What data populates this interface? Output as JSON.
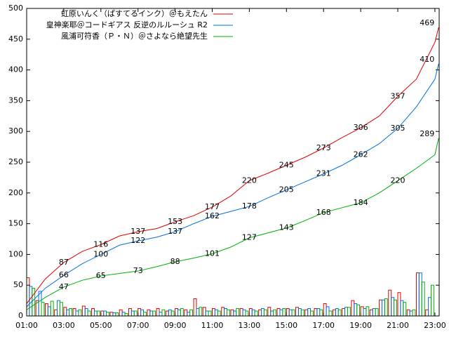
{
  "chart_data": {
    "type": "line-bar",
    "xlim": [
      1,
      23.23
    ],
    "ylim": [
      0,
      500
    ],
    "xticks": [
      {
        "value": 1,
        "label": "01:00"
      },
      {
        "value": 3,
        "label": "03:00"
      },
      {
        "value": 5,
        "label": "05:00"
      },
      {
        "value": 7,
        "label": "07:00"
      },
      {
        "value": 9,
        "label": "09:00"
      },
      {
        "value": 11,
        "label": "11:00"
      },
      {
        "value": 13,
        "label": "13:00"
      },
      {
        "value": 15,
        "label": "15:00"
      },
      {
        "value": 17,
        "label": "17:00"
      },
      {
        "value": 19,
        "label": "19:00"
      },
      {
        "value": 21,
        "label": "21:00"
      },
      {
        "value": 23,
        "label": "23:00"
      }
    ],
    "yticks": [
      0,
      50,
      100,
      150,
      200,
      250,
      300,
      350,
      400,
      450,
      500
    ],
    "x": [
      1,
      2,
      3,
      4,
      5,
      6,
      7,
      8,
      9,
      10,
      11,
      12,
      13,
      14,
      15,
      16,
      17,
      18,
      19,
      20,
      21,
      22,
      23,
      23.2
    ],
    "bar_x": [
      1,
      1.5,
      2,
      2.5,
      3,
      3.5,
      4,
      4.5,
      5,
      5.5,
      6,
      6.5,
      7,
      7.5,
      8,
      8.5,
      9,
      9.5,
      10,
      10.5,
      11,
      11.5,
      12,
      12.5,
      13,
      13.5,
      14,
      14.5,
      15,
      15.5,
      16,
      16.5,
      17,
      17.5,
      18,
      18.5,
      19,
      19.5,
      20,
      20.5,
      21,
      21.5,
      22,
      22.5
    ],
    "series": [
      {
        "name": "虹原いんく（ぱすてるインク）＠もえたん",
        "color": "#e00000",
        "values": [
          20,
          60,
          87,
          105,
          116,
          130,
          137,
          142,
          153,
          163,
          177,
          195,
          220,
          232,
          245,
          258,
          273,
          290,
          306,
          325,
          357,
          385,
          445,
          469
        ],
        "labels": [
          {
            "x": 3,
            "value": 87
          },
          {
            "x": 5,
            "value": 116
          },
          {
            "x": 7,
            "value": 137
          },
          {
            "x": 9,
            "value": 153
          },
          {
            "x": 11,
            "value": 177
          },
          {
            "x": 13,
            "value": 220
          },
          {
            "x": 15,
            "value": 245
          },
          {
            "x": 17,
            "value": 273
          },
          {
            "x": 19,
            "value": 306
          },
          {
            "x": 21,
            "value": 357
          },
          {
            "x": 23.2,
            "value": 469
          }
        ],
        "bars": [
          62,
          25,
          20,
          10,
          14,
          12,
          16,
          12,
          8,
          6,
          10,
          12,
          12,
          10,
          12,
          8,
          12,
          10,
          28,
          14,
          12,
          14,
          10,
          12,
          12,
          10,
          14,
          12,
          12,
          14,
          10,
          12,
          20,
          10,
          12,
          25,
          15,
          10,
          26,
          42,
          38,
          10,
          70,
          10
        ]
      },
      {
        "name": "皇神楽耶＠コードギアス 反逆のルルーシュ R2",
        "color": "#0070e0",
        "values": [
          15,
          45,
          66,
          85,
          100,
          115,
          122,
          128,
          137,
          150,
          162,
          170,
          178,
          192,
          205,
          218,
          231,
          245,
          262,
          280,
          305,
          340,
          385,
          410
        ],
        "labels": [
          {
            "x": 3,
            "value": 66
          },
          {
            "x": 5,
            "value": 100
          },
          {
            "x": 7,
            "value": 122
          },
          {
            "x": 9,
            "value": 137
          },
          {
            "x": 11,
            "value": 162
          },
          {
            "x": 13,
            "value": 178
          },
          {
            "x": 15,
            "value": 205
          },
          {
            "x": 17,
            "value": 231
          },
          {
            "x": 19,
            "value": 262
          },
          {
            "x": 21,
            "value": 305
          },
          {
            "x": 23.2,
            "value": 410
          }
        ],
        "bars": [
          48,
          40,
          15,
          25,
          10,
          8,
          12,
          8,
          8,
          5,
          6,
          8,
          10,
          8,
          6,
          10,
          10,
          6,
          12,
          8,
          10,
          12,
          8,
          10,
          10,
          12,
          8,
          10,
          10,
          12,
          12,
          12,
          15,
          12,
          14,
          20,
          12,
          12,
          26,
          30,
          25,
          8,
          70,
          30
        ]
      },
      {
        "name": "風浦可符香（Ｐ・Ｎ）＠さよなら絶望先生",
        "color": "#00b000",
        "values": [
          10,
          30,
          47,
          58,
          65,
          69,
          73,
          80,
          88,
          94,
          101,
          112,
          127,
          135,
          143,
          155,
          168,
          176,
          184,
          200,
          220,
          240,
          262,
          289
        ],
        "labels": [
          {
            "x": 3,
            "value": 47
          },
          {
            "x": 5,
            "value": 65
          },
          {
            "x": 7,
            "value": 73
          },
          {
            "x": 9,
            "value": 88
          },
          {
            "x": 11,
            "value": 101
          },
          {
            "x": 13,
            "value": 127
          },
          {
            "x": 15,
            "value": 143
          },
          {
            "x": 17,
            "value": 168
          },
          {
            "x": 19,
            "value": 184
          },
          {
            "x": 21,
            "value": 220
          },
          {
            "x": 23.2,
            "value": 289
          }
        ],
        "bars": [
          45,
          22,
          24,
          22,
          12,
          10,
          8,
          8,
          6,
          5,
          4,
          8,
          6,
          8,
          10,
          8,
          12,
          10,
          14,
          8,
          8,
          10,
          12,
          8,
          8,
          10,
          10,
          12,
          10,
          10,
          8,
          10,
          8,
          10,
          14,
          18,
          15,
          12,
          28,
          26,
          22,
          10,
          55,
          50
        ]
      }
    ]
  }
}
